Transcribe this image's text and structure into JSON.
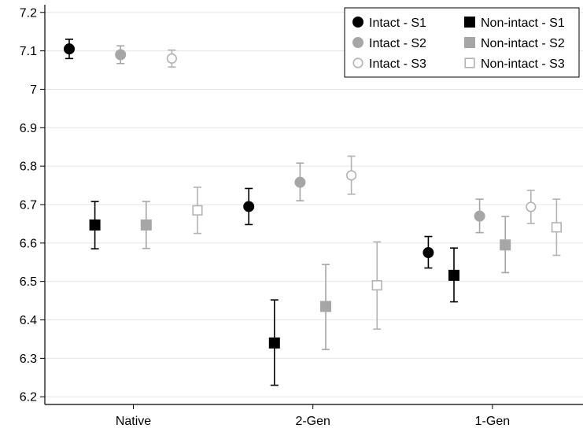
{
  "chart_data": {
    "type": "scatter",
    "title": "",
    "xlabel": "",
    "ylabel": "",
    "categories": [
      "Native",
      "2-Gen",
      "1-Gen"
    ],
    "ylim": [
      6.18,
      7.22
    ],
    "yticks": [
      6.2,
      6.3,
      6.4,
      6.5,
      6.6,
      6.7,
      6.8,
      6.9,
      7,
      7.1,
      7.2
    ],
    "ytick_labels": [
      "6.2",
      "6.3",
      "6.4",
      "6.5",
      "6.6",
      "6.7",
      "6.8",
      "6.9",
      "7",
      "7.1",
      "7.2"
    ],
    "grid": true,
    "legend_position": "top-right",
    "error_bars": true,
    "series": [
      {
        "name": "Intact - S1",
        "marker": "circle-filled",
        "color": "#000000",
        "values": [
          7.105,
          6.695,
          6.575
        ],
        "lower": [
          7.08,
          6.648,
          6.535
        ],
        "upper": [
          7.13,
          6.742,
          6.617
        ]
      },
      {
        "name": "Non-intact - S1",
        "marker": "square-filled",
        "color": "#000000",
        "values": [
          6.647,
          6.34,
          6.516
        ],
        "lower": [
          6.585,
          6.23,
          6.447
        ],
        "upper": [
          6.708,
          6.452,
          6.587
        ]
      },
      {
        "name": "Intact - S2",
        "marker": "circle-filled",
        "color": "#a6a6a6",
        "values": [
          7.09,
          6.758,
          6.67
        ],
        "lower": [
          7.067,
          6.71,
          6.627
        ],
        "upper": [
          7.113,
          6.808,
          6.714
        ]
      },
      {
        "name": "Non-intact - S2",
        "marker": "square-filled",
        "color": "#a6a6a6",
        "values": [
          6.647,
          6.435,
          6.595
        ],
        "lower": [
          6.586,
          6.323,
          6.523
        ],
        "upper": [
          6.708,
          6.544,
          6.669
        ]
      },
      {
        "name": "Intact - S3",
        "marker": "circle-open",
        "color": "#b3b3b3",
        "values": [
          7.08,
          6.776,
          6.694
        ],
        "lower": [
          7.058,
          6.727,
          6.651
        ],
        "upper": [
          7.102,
          6.826,
          6.737
        ]
      },
      {
        "name": "Non-intact - S3",
        "marker": "square-open",
        "color": "#b3b3b3",
        "values": [
          6.685,
          6.49,
          6.641
        ],
        "lower": [
          6.625,
          6.376,
          6.568
        ],
        "upper": [
          6.745,
          6.603,
          6.714
        ]
      }
    ],
    "legend_rows": [
      [
        "Intact - S1",
        "Non-intact - S1"
      ],
      [
        "Intact - S2",
        "Non-intact - S2"
      ],
      [
        "Intact - S3",
        "Non-intact - S3"
      ]
    ]
  }
}
